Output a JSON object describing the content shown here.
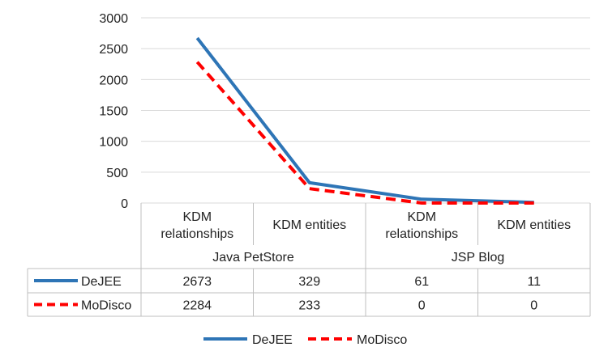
{
  "chart_data": {
    "type": "line",
    "ylim": [
      0,
      3000
    ],
    "yticks": [
      0,
      500,
      1000,
      1500,
      2000,
      2500,
      3000
    ],
    "grid": true,
    "legend_position": "bottom",
    "categories": [
      {
        "lines": [
          "KDM",
          "relationships"
        ],
        "group": "Java PetStore"
      },
      {
        "lines": [
          "KDM entities"
        ],
        "group": "Java PetStore"
      },
      {
        "lines": [
          "KDM",
          "relationships"
        ],
        "group": "JSP Blog"
      },
      {
        "lines": [
          "KDM entities"
        ],
        "group": "JSP Blog"
      }
    ],
    "groups": [
      "Java PetStore",
      "JSP Blog"
    ],
    "series": [
      {
        "name": "DeJEE",
        "values": [
          2673,
          329,
          61,
          11
        ],
        "color": "#2e75b6",
        "style": "solid"
      },
      {
        "name": "MoDisco",
        "values": [
          2284,
          233,
          0,
          0
        ],
        "color": "#ff0000",
        "style": "dashed"
      }
    ]
  }
}
